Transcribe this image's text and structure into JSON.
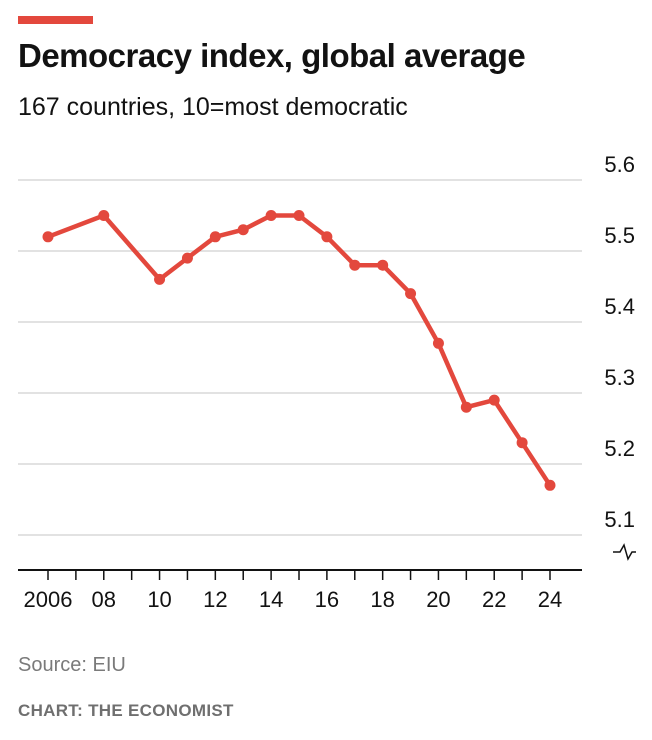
{
  "header": {
    "title": "Democracy index, global average",
    "subtitle": "167 countries, 10=most democratic"
  },
  "footer": {
    "source": "Source: EIU",
    "credit": "CHART: THE ECONOMIST"
  },
  "colors": {
    "accent": "#e3483d",
    "line": "#e3483d",
    "grid": "#d9d9d9",
    "axis": "#121212"
  },
  "chart_data": {
    "type": "line",
    "title": "Democracy index, global average",
    "subtitle": "167 countries, 10=most democratic",
    "xlabel": "",
    "ylabel": "",
    "x": [
      2006,
      2008,
      2010,
      2011,
      2012,
      2013,
      2014,
      2015,
      2016,
      2017,
      2018,
      2019,
      2020,
      2021,
      2022,
      2023,
      2024
    ],
    "series": [
      {
        "values": [
          5.52,
          5.55,
          5.46,
          5.49,
          5.52,
          5.53,
          5.55,
          5.55,
          5.52,
          5.48,
          5.48,
          5.44,
          5.37,
          5.28,
          5.29,
          5.23,
          5.17
        ]
      }
    ],
    "xlim": [
      2006,
      2024
    ],
    "ylim": [
      5.1,
      5.6
    ],
    "yticks": [
      5.6,
      5.5,
      5.4,
      5.3,
      5.2,
      5.1
    ],
    "ytick_labels": [
      "5.6",
      "5.5",
      "5.4",
      "5.3",
      "5.2",
      "5.1"
    ],
    "xticks": [
      2006,
      2008,
      2010,
      2012,
      2014,
      2016,
      2018,
      2020,
      2022,
      2024
    ],
    "xtick_labels": [
      "2006",
      "08",
      "10",
      "12",
      "14",
      "16",
      "18",
      "20",
      "22",
      "24"
    ],
    "xticks_minor": [
      2006,
      2007,
      2008,
      2009,
      2010,
      2011,
      2012,
      2013,
      2014,
      2015,
      2016,
      2017,
      2018,
      2019,
      2020,
      2021,
      2022,
      2023,
      2024
    ],
    "y_axis_side": "right",
    "y_axis_break": true,
    "grid": true,
    "markers": true,
    "legend": "none"
  }
}
